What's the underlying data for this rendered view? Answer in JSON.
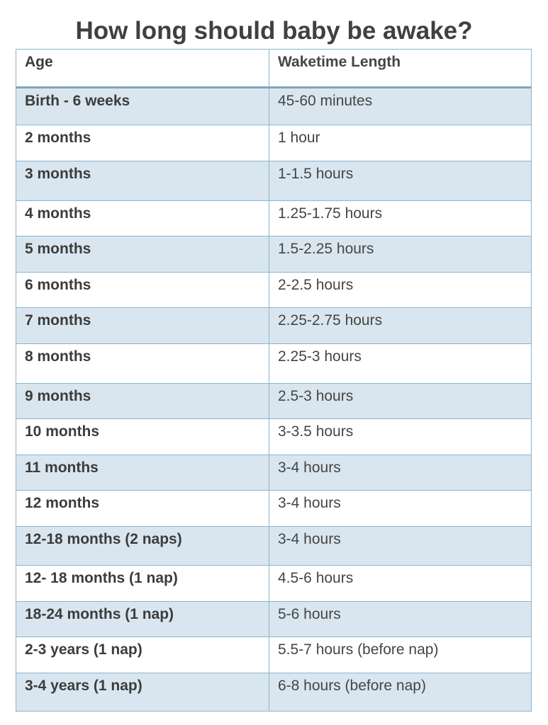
{
  "title": "How long should baby be awake?",
  "table": {
    "headers": {
      "age": "Age",
      "wake": "Waketime Length"
    },
    "rows": [
      {
        "age": "Birth - 6 weeks",
        "wake": "45-60 minutes"
      },
      {
        "age": "2 months",
        "wake": "1 hour"
      },
      {
        "age": "3 months",
        "wake": "1-1.5 hours"
      },
      {
        "age": "4 months",
        "wake": "1.25-1.75 hours"
      },
      {
        "age": "5 months",
        "wake": "1.5-2.25 hours"
      },
      {
        "age": "6 months",
        "wake": "2-2.5 hours"
      },
      {
        "age": "7 months",
        "wake": "2.25-2.75 hours"
      },
      {
        "age": "8 months",
        "wake": "2.25-3 hours"
      },
      {
        "age": "9 months",
        "wake": "2.5-3 hours"
      },
      {
        "age": "10 months",
        "wake": "3-3.5 hours"
      },
      {
        "age": "11 months",
        "wake": "3-4 hours"
      },
      {
        "age": "12 months",
        "wake": "3-4 hours"
      },
      {
        "age": "12-18 months (2 naps)",
        "wake": "3-4 hours"
      },
      {
        "age": "12- 18 months (1 nap)",
        "wake": "4.5-6 hours"
      },
      {
        "age": "18-24 months (1 nap)",
        "wake": "5-6 hours"
      },
      {
        "age": "2-3 years (1 nap)",
        "wake": "5.5-7 hours (before nap)"
      },
      {
        "age": "3-4 years (1 nap)",
        "wake": "6-8 hours (before nap)"
      }
    ]
  },
  "colors": {
    "shaded_row": "#d9e6ef",
    "border": "#8fb3cc",
    "title_text": "#404040"
  }
}
